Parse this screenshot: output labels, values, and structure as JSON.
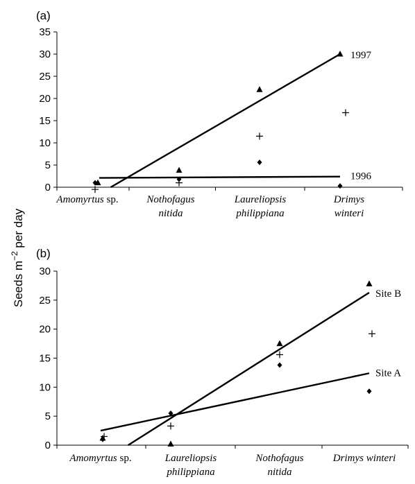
{
  "y_axis_label": "Seeds m−2 per day",
  "chart_data": [
    {
      "type": "scatter",
      "panel_label": "(a)",
      "categories": [
        {
          "lines": [
            {
              "text": "Amomyrtus",
              "italic": true
            },
            {
              "text": " sp.",
              "italic": false
            }
          ]
        },
        {
          "lines": [
            {
              "text": "Nothofagus",
              "italic": true
            }
          ],
          "line2": "nitida"
        },
        {
          "lines": [
            {
              "text": "Laureliopsis",
              "italic": true
            }
          ],
          "line2": "philippiana"
        },
        {
          "lines": [
            {
              "text": "Drimys",
              "italic": true
            }
          ],
          "line2": "winteri"
        }
      ],
      "ylim": [
        0,
        35
      ],
      "yticks": [
        0,
        5,
        10,
        15,
        20,
        25,
        30,
        35
      ],
      "series": [
        {
          "name": "1997",
          "marker": "triangle",
          "values": [
            1.0,
            3.8,
            22.0,
            30.0
          ]
        },
        {
          "name": "1996",
          "marker": "diamond",
          "values": [
            1.0,
            1.8,
            5.6,
            0.3
          ]
        },
        {
          "marker": "plus",
          "values": [
            -0.5,
            1.0,
            11.5,
            16.8
          ]
        }
      ],
      "fit_lines": [
        {
          "label": "1997",
          "start": [
            1,
            -1.5
          ],
          "end": [
            4,
            30.0
          ]
        },
        {
          "label": "1996",
          "start": [
            1,
            2.1
          ],
          "end": [
            4,
            2.4
          ]
        }
      ]
    },
    {
      "type": "scatter",
      "panel_label": "(b)",
      "categories": [
        {
          "lines": [
            {
              "text": "Amomyrtus",
              "italic": true
            },
            {
              "text": " sp.",
              "italic": false
            }
          ]
        },
        {
          "lines": [
            {
              "text": "Laureliopsis",
              "italic": true
            }
          ],
          "line2": "philippiana"
        },
        {
          "lines": [
            {
              "text": "Nothofagus",
              "italic": true
            }
          ],
          "line2": "nitida"
        },
        {
          "lines": [
            {
              "text": "Drimys winteri",
              "italic": true
            }
          ]
        }
      ],
      "ylim": [
        0,
        30
      ],
      "yticks": [
        0,
        5,
        10,
        15,
        20,
        25,
        30
      ],
      "series": [
        {
          "name": "Site B",
          "marker": "triangle",
          "values": [
            1.2,
            0.2,
            17.5,
            27.8
          ]
        },
        {
          "name": "Site A",
          "marker": "diamond",
          "values": [
            1.0,
            5.5,
            13.8,
            9.3
          ]
        },
        {
          "marker": "plus",
          "values": [
            1.5,
            3.3,
            15.6,
            19.2
          ]
        }
      ],
      "fit_lines": [
        {
          "label": "Site B",
          "start": [
            1,
            -3.0
          ],
          "end": [
            4,
            26.3
          ]
        },
        {
          "label": "Site A",
          "start": [
            1,
            2.5
          ],
          "end": [
            4,
            12.4
          ]
        }
      ]
    }
  ]
}
